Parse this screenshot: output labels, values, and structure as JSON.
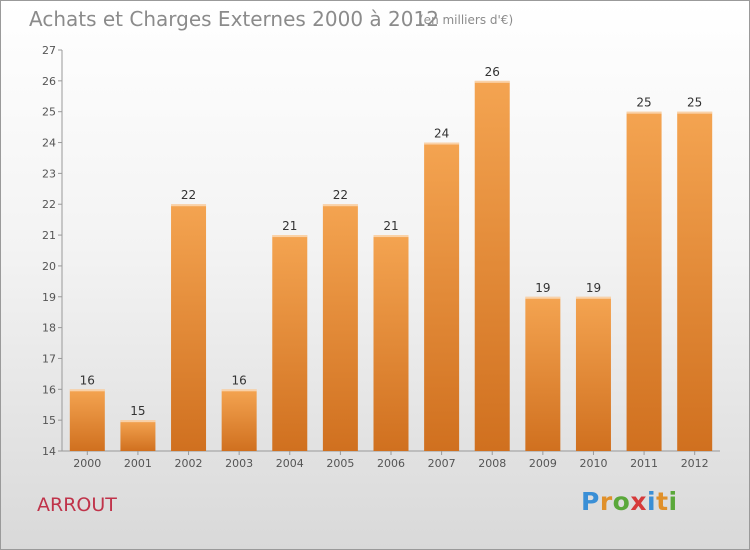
{
  "header": {
    "title": "Achats et Charges Externes 2000 à 2012",
    "unit_note": "(en milliers d'€)"
  },
  "footer": {
    "commune": "ARROUT",
    "brand_letters": [
      "P",
      "r",
      "o",
      "x",
      "i",
      "t",
      "i"
    ],
    "brand_colors": [
      "#3a8fd6",
      "#e0902a",
      "#5aa83a",
      "#d63a3a",
      "#3a8fd6",
      "#e0902a",
      "#5aa83a"
    ]
  },
  "colors": {
    "bar_top": "#f4a451",
    "bar_bottom": "#d0701f"
  },
  "chart_data": {
    "type": "bar",
    "title": "Achats et Charges Externes 2000 à 2012",
    "subtitle": "(en milliers d'€)",
    "xlabel": "",
    "ylabel": "",
    "categories": [
      "2000",
      "2001",
      "2002",
      "2003",
      "2004",
      "2005",
      "2006",
      "2007",
      "2008",
      "2009",
      "2010",
      "2011",
      "2012"
    ],
    "values": [
      16,
      15,
      22,
      16,
      21,
      22,
      21,
      24,
      26,
      19,
      19,
      25,
      25
    ],
    "ylim": [
      14,
      27
    ],
    "yticks": [
      "14",
      "15",
      "16",
      "17",
      "18",
      "19",
      "20",
      "21",
      "22",
      "23",
      "24",
      "25",
      "26",
      "27"
    ],
    "grid": false,
    "legend": "none"
  }
}
